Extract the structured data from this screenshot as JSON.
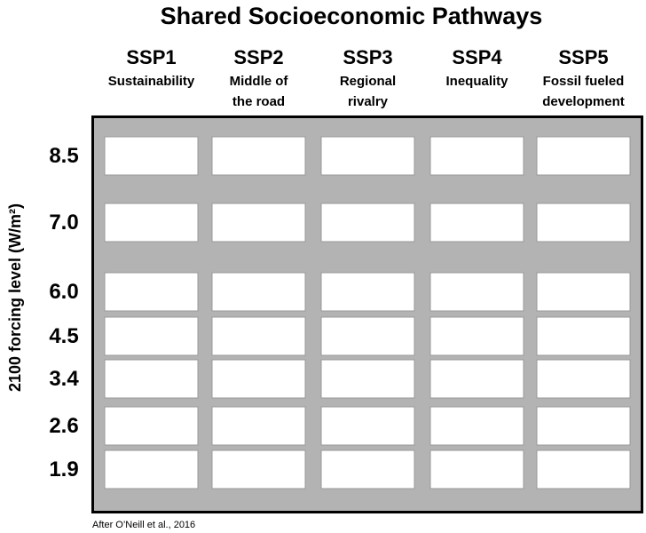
{
  "title": "Shared Socioeconomic Pathways",
  "columns": [
    {
      "name": "SSP1",
      "description": [
        "Sustainability"
      ]
    },
    {
      "name": "SSP2",
      "description": [
        "Middle of",
        "the road"
      ]
    },
    {
      "name": "SSP3",
      "description": [
        "Regional",
        "rivalry"
      ]
    },
    {
      "name": "SSP4",
      "description": [
        "Inequality"
      ]
    },
    {
      "name": "SSP5",
      "description": [
        "Fossil fueled",
        "development"
      ]
    }
  ],
  "y_label": "2100 forcing level (W/m²)",
  "rows": [
    "8.5",
    "7.0",
    "6.0",
    "4.5",
    "3.4",
    "2.6",
    "1.9"
  ],
  "source": "After O’Neill et al., 2016"
}
